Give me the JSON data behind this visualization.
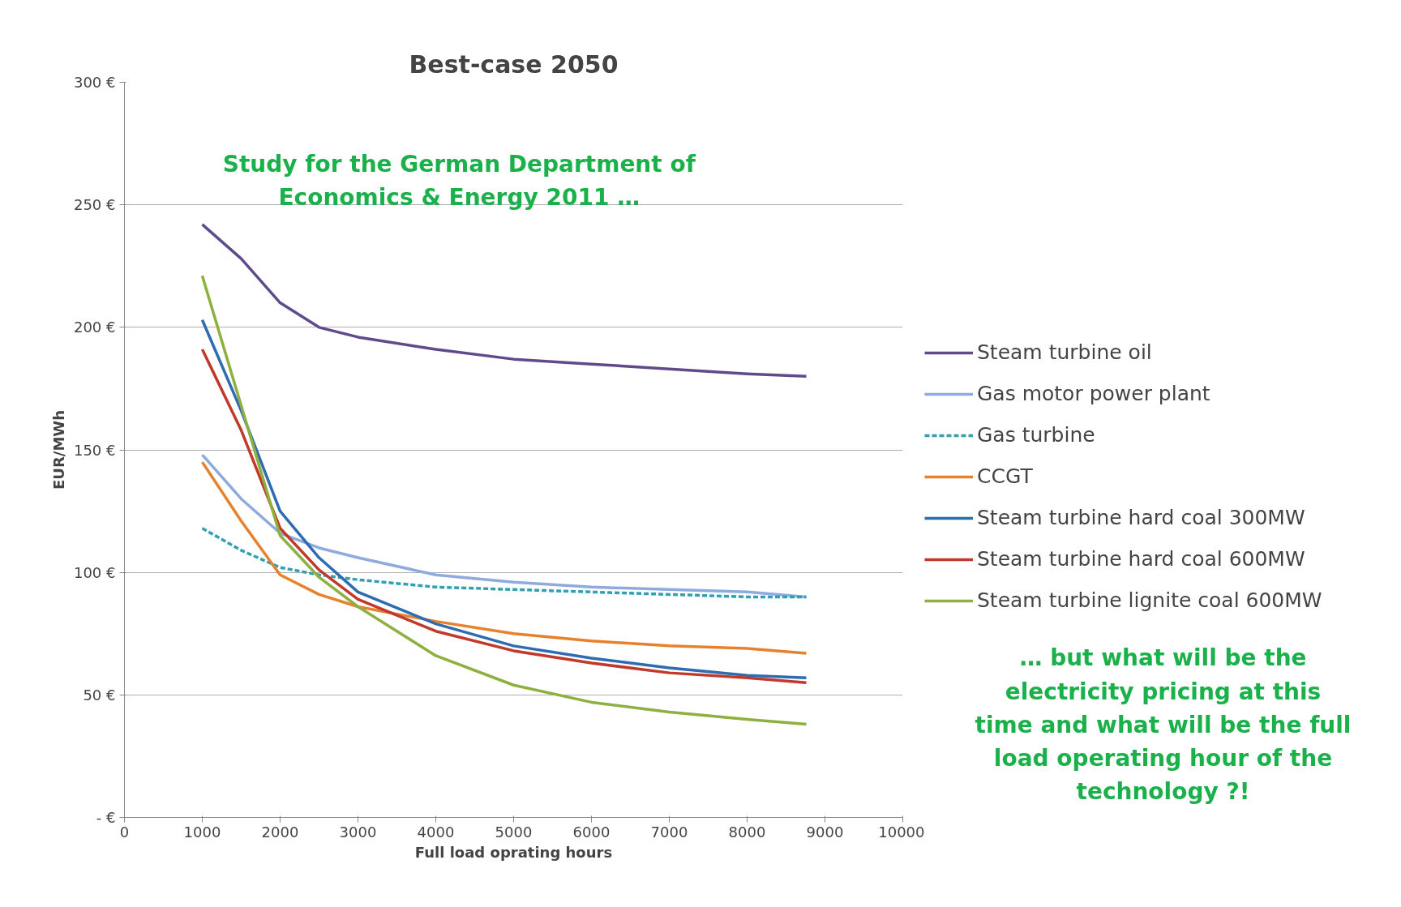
{
  "chart_data": {
    "type": "line",
    "title": "Best-case 2050",
    "xlabel": "Full load oprating hours",
    "ylabel": "EUR/MWh",
    "x": [
      1000,
      1500,
      2000,
      2500,
      3000,
      4000,
      5000,
      6000,
      7000,
      8000,
      8760
    ],
    "xlim": [
      0,
      10000
    ],
    "xticks": [
      0,
      1000,
      2000,
      3000,
      4000,
      5000,
      6000,
      7000,
      8000,
      9000,
      10000
    ],
    "ylim": [
      0,
      300
    ],
    "yticks": [
      {
        "value": 0,
        "label": "- €"
      },
      {
        "value": 50,
        "label": "50 €"
      },
      {
        "value": 100,
        "label": "100 €"
      },
      {
        "value": 150,
        "label": "150 €"
      },
      {
        "value": 200,
        "label": "200 €"
      },
      {
        "value": 250,
        "label": "250 €"
      },
      {
        "value": 300,
        "label": "300 €"
      }
    ],
    "grid": "y",
    "legend": "right",
    "marker": "none",
    "series": [
      {
        "name": "Steam turbine oil",
        "color": "#5f4b8b",
        "values": [
          242,
          228,
          210,
          200,
          196,
          191,
          187,
          185,
          183,
          181,
          180
        ]
      },
      {
        "name": "Gas motor power plant",
        "color": "#8faadc",
        "values": [
          148,
          130,
          116,
          110,
          106,
          99,
          96,
          94,
          93,
          92,
          90
        ]
      },
      {
        "name": "Gas turbine",
        "color": "#31a0b0",
        "line_style": "dashed",
        "values": [
          118,
          109,
          102,
          99,
          97,
          94,
          93,
          92,
          91,
          90,
          90
        ]
      },
      {
        "name": "CCGT",
        "color": "#e6822e",
        "values": [
          145,
          121,
          99,
          91,
          86,
          80,
          75,
          72,
          70,
          69,
          67
        ]
      },
      {
        "name": "Steam turbine hard coal 300MW",
        "color": "#2e6bb0",
        "values": [
          203,
          166,
          125,
          106,
          92,
          79,
          70,
          65,
          61,
          58,
          57
        ]
      },
      {
        "name": "Steam turbine hard coal 600MW",
        "color": "#c0392b",
        "values": [
          191,
          158,
          118,
          101,
          89,
          76,
          68,
          63,
          59,
          57,
          55
        ]
      },
      {
        "name": "Steam turbine lignite coal 600MW",
        "color": "#8db040",
        "values": [
          221,
          168,
          115,
          98,
          86,
          66,
          54,
          47,
          43,
          40,
          38
        ]
      }
    ],
    "annotations": [
      "Study for the German Department of Economics & Energy 2011 …",
      "… but what will be the electricity pricing at this time and what will be the full load operating hour of the technology ?!"
    ]
  }
}
